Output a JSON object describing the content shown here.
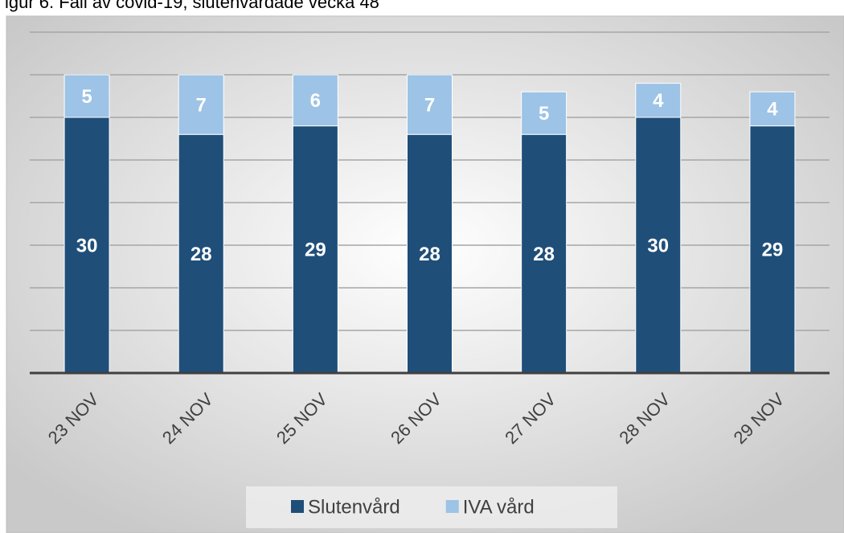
{
  "chart_data": {
    "type": "stacked_bar",
    "title": "igur 6. Fall av covid-19, slutenvårdade vecka 48",
    "categories": [
      "23 NOV",
      "24 NOV",
      "25 NOV",
      "26 NOV",
      "27 NOV",
      "28 NOV",
      "29 NOV"
    ],
    "series": [
      {
        "name": "Slutenvård",
        "color": "#1f4e79",
        "values": [
          30,
          28,
          29,
          28,
          28,
          30,
          29
        ]
      },
      {
        "name": "IVA vård",
        "color": "#9dc3e6",
        "values": [
          5,
          7,
          6,
          7,
          5,
          4,
          4
        ]
      }
    ],
    "ylim": [
      0,
      40
    ],
    "yticks": [
      0,
      5,
      10,
      15,
      20,
      25,
      30,
      35,
      40
    ],
    "grid": true,
    "legend": "bottom"
  }
}
